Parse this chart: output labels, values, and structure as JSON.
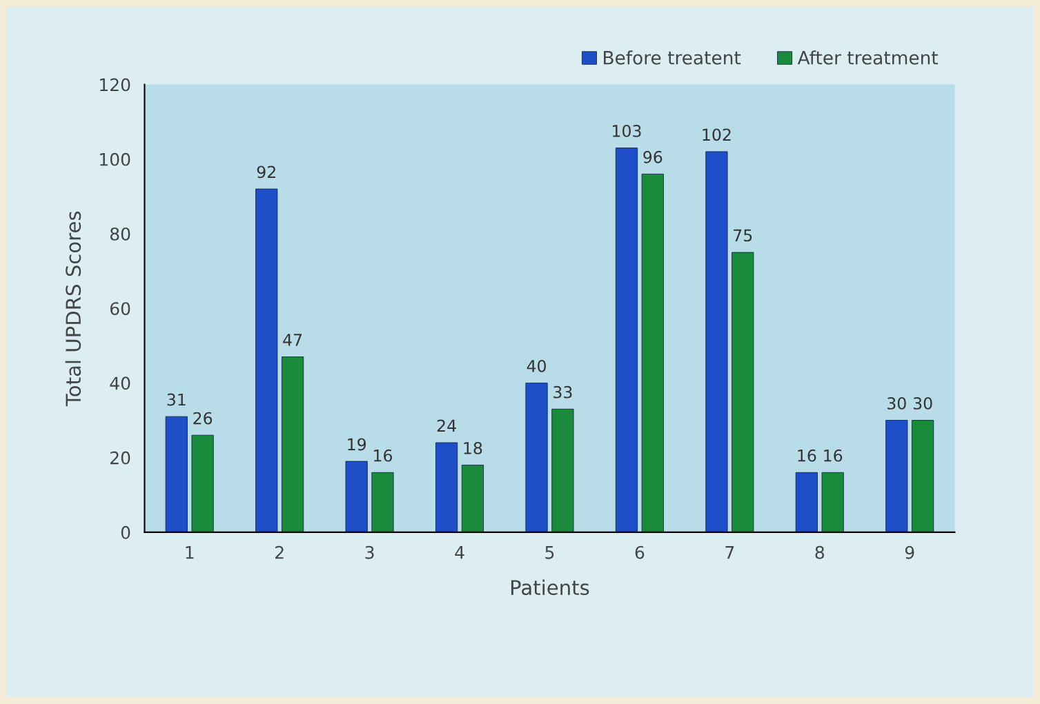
{
  "chart_data": {
    "type": "bar",
    "xlabel": "Patients",
    "ylabel": "Total UPDRS Scores",
    "categories": [
      "1",
      "2",
      "3",
      "4",
      "5",
      "6",
      "7",
      "8",
      "9"
    ],
    "series": [
      {
        "name": "Before treatent",
        "color": "#1f4fc8",
        "values": [
          31,
          92,
          19,
          24,
          40,
          103,
          102,
          16,
          30
        ]
      },
      {
        "name": "After treatment",
        "color": "#1a8a3c",
        "values": [
          26,
          47,
          16,
          18,
          33,
          96,
          75,
          16,
          30
        ]
      }
    ],
    "ylim": [
      0,
      120
    ],
    "yticks": [
      0,
      20,
      40,
      60,
      80,
      100,
      120
    ],
    "data_labels": true,
    "grid": false,
    "legend": "top right"
  }
}
